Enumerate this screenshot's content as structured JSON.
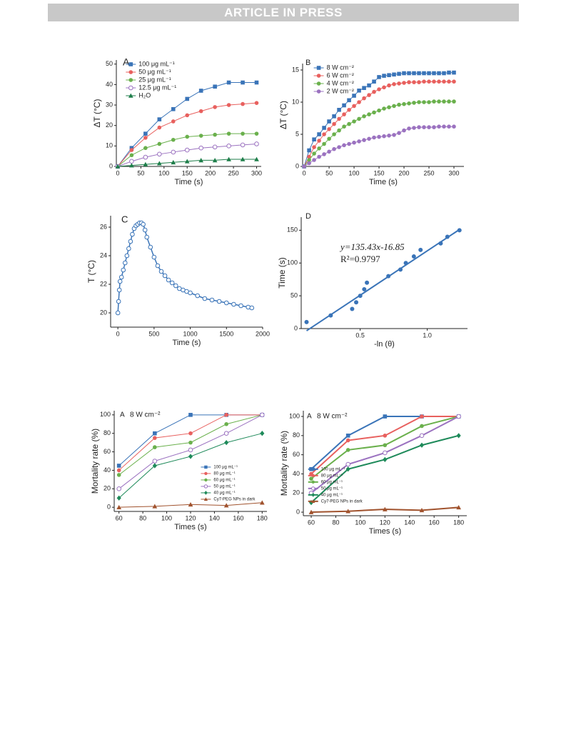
{
  "header": {
    "banner": "ARTICLE IN PRESS"
  },
  "chart_data": [
    {
      "type": "line",
      "panel_label": "A",
      "xlabel": "Time (s)",
      "ylabel": "ΔT (°C)",
      "x": [
        0,
        30,
        60,
        90,
        120,
        150,
        180,
        210,
        240,
        270,
        300
      ],
      "xlim": [
        -3,
        310
      ],
      "xticks": [
        0,
        50,
        100,
        150,
        200,
        250,
        300
      ],
      "ylim": [
        0,
        52
      ],
      "yticks": [
        0,
        10,
        20,
        30,
        40,
        50
      ],
      "legend": "upper left",
      "line_width": 1,
      "series": [
        {
          "name": "100 μg mL⁻¹",
          "color": "#3a74b8",
          "marker": "square",
          "values": [
            0,
            9,
            16,
            23,
            28,
            33,
            37,
            39,
            41,
            41,
            41
          ]
        },
        {
          "name": "50   μg mL⁻¹",
          "color": "#e8605e",
          "marker": "circle",
          "values": [
            0,
            8,
            14,
            19,
            22,
            25,
            27,
            29,
            30,
            30.5,
            31
          ]
        },
        {
          "name": "25   μg mL⁻¹",
          "color": "#6ab04c",
          "marker": "circle",
          "values": [
            0,
            5.5,
            9,
            11,
            13,
            14.5,
            15,
            15.5,
            16,
            16,
            16
          ]
        },
        {
          "name": "12.5 μg mL⁻¹",
          "color": "#9b72c0",
          "marker": "open-circle",
          "values": [
            0,
            2.5,
            4.5,
            6,
            7,
            8,
            9,
            9.5,
            10,
            10.5,
            11
          ]
        },
        {
          "name": "H₂O",
          "color": "#1e7e4a",
          "marker": "triangle",
          "values": [
            0,
            0.5,
            1,
            1.5,
            2,
            2.5,
            3,
            3,
            3.5,
            3.5,
            3.5
          ]
        }
      ]
    },
    {
      "type": "line",
      "panel_label": "B",
      "xlabel": "Time (s)",
      "ylabel": "ΔT (°C)",
      "x": [
        0,
        10,
        20,
        30,
        40,
        50,
        60,
        70,
        80,
        90,
        100,
        110,
        120,
        130,
        140,
        150,
        160,
        170,
        180,
        190,
        200,
        210,
        220,
        230,
        240,
        250,
        260,
        270,
        280,
        290,
        300
      ],
      "xlim": [
        -3,
        320
      ],
      "xticks": [
        0,
        50,
        100,
        150,
        200,
        250,
        300
      ],
      "ylim": [
        0,
        16
      ],
      "yticks": [
        0,
        5,
        10,
        15
      ],
      "legend": "upper left",
      "line_width": 1,
      "series": [
        {
          "name": "8 W cm⁻²",
          "color": "#3a74b8",
          "marker": "square",
          "values": [
            0,
            2.5,
            4.2,
            5,
            6,
            7,
            7.8,
            8.8,
            9.5,
            10.3,
            11,
            11.8,
            12.2,
            12.6,
            13.2,
            13.9,
            14.1,
            14.2,
            14.3,
            14.4,
            14.5,
            14.5,
            14.5,
            14.5,
            14.5,
            14.5,
            14.5,
            14.5,
            14.5,
            14.6,
            14.6
          ]
        },
        {
          "name": "6 W cm⁻²",
          "color": "#e8605e",
          "marker": "circle",
          "values": [
            0,
            1.5,
            3,
            4,
            5,
            5.8,
            6.6,
            7.4,
            8.1,
            8.8,
            9.4,
            10,
            10.6,
            11.1,
            11.6,
            12,
            12.3,
            12.6,
            12.8,
            12.9,
            13,
            13.1,
            13.1,
            13.1,
            13.2,
            13.2,
            13.2,
            13.2,
            13.2,
            13.2,
            13.2
          ]
        },
        {
          "name": "4 W cm⁻²",
          "color": "#6ab04c",
          "marker": "circle",
          "values": [
            0,
            1,
            2,
            2.8,
            3.5,
            4.3,
            5,
            5.6,
            6.2,
            6.6,
            7,
            7.4,
            7.8,
            8.1,
            8.4,
            8.7,
            9,
            9.2,
            9.4,
            9.6,
            9.7,
            9.8,
            9.9,
            10,
            10,
            10,
            10.1,
            10.1,
            10.1,
            10.1,
            10.1
          ]
        },
        {
          "name": "2 W cm⁻²",
          "color": "#9b72c0",
          "marker": "circle",
          "values": [
            0,
            0.5,
            1,
            1.5,
            1.9,
            2.3,
            2.7,
            3,
            3.3,
            3.5,
            3.7,
            3.9,
            4.1,
            4.3,
            4.5,
            4.6,
            4.7,
            4.8,
            4.9,
            5.2,
            5.6,
            5.9,
            6,
            6.1,
            6.1,
            6.1,
            6.1,
            6.2,
            6.2,
            6.2,
            6.2
          ]
        }
      ]
    },
    {
      "type": "line",
      "panel_label": "C",
      "xlabel": "Time (s)",
      "ylabel": "T (°C)",
      "x": [
        0,
        10,
        20,
        30,
        50,
        75,
        100,
        125,
        150,
        175,
        200,
        225,
        250,
        275,
        300,
        325,
        350,
        375,
        400,
        450,
        500,
        550,
        600,
        650,
        700,
        750,
        800,
        850,
        900,
        950,
        1000,
        1100,
        1200,
        1300,
        1400,
        1500,
        1600,
        1700,
        1800,
        1850
      ],
      "xlim": [
        -100,
        2000
      ],
      "xticks": [
        0,
        500,
        1000,
        1500,
        2000
      ],
      "ylim": [
        19,
        26.8
      ],
      "yticks": [
        20,
        22,
        24,
        26
      ],
      "line_width": 1.5,
      "series": [
        {
          "color": "#3a74b8",
          "marker": "open-circle",
          "values": [
            20,
            20.8,
            21.6,
            22.2,
            22.5,
            23,
            23.5,
            24,
            24.5,
            25,
            25.5,
            25.9,
            26.1,
            26.2,
            26.3,
            26.3,
            26.2,
            25.8,
            25.3,
            24.6,
            23.9,
            23.3,
            22.9,
            22.6,
            22.3,
            22.1,
            21.9,
            21.7,
            21.6,
            21.5,
            21.4,
            21.2,
            21,
            20.9,
            20.8,
            20.7,
            20.6,
            20.5,
            20.4,
            20.35
          ]
        }
      ]
    },
    {
      "type": "scatter",
      "panel_label": "D",
      "xlabel": "-ln (θ)",
      "ylabel": "Time (s)",
      "color": "#3a74b8",
      "x": [
        0.1,
        0.28,
        0.44,
        0.47,
        0.5,
        0.53,
        0.55,
        0.71,
        0.8,
        0.84,
        0.9,
        0.95,
        1.1,
        1.15,
        1.24
      ],
      "values": [
        10,
        20,
        30,
        40,
        50,
        60,
        70,
        80,
        90,
        100,
        110,
        120,
        130,
        140,
        150
      ],
      "xlim": [
        0.06,
        1.3
      ],
      "xticks": [
        0.5,
        {
          "value": 1,
          "label": "1.0"
        }
      ],
      "ylim": [
        0,
        170
      ],
      "yticks": [
        0,
        50,
        100,
        150
      ],
      "fit": {
        "slope": 135.43,
        "intercept": -16.85
      },
      "annotations": [
        "y=135.43x-16.85",
        "R²=0.9797"
      ]
    },
    {
      "type": "line",
      "panel_label": "A",
      "subtitle": "8 W cm⁻²",
      "xlabel": "Times (s)",
      "ylabel": "Mortality rate (%)",
      "x": [
        60,
        90,
        120,
        150,
        180
      ],
      "xlim": [
        56,
        184
      ],
      "xticks": [
        60,
        80,
        100,
        120,
        140,
        160,
        180
      ],
      "ylim": [
        -4.5,
        104.5
      ],
      "yticks": [
        0,
        20,
        40,
        60,
        80,
        100
      ],
      "legend": "lower right",
      "line_width": 1,
      "series": [
        {
          "name": "100 μg mL⁻¹",
          "color": "#3a74b8",
          "marker": "square",
          "values": [
            45,
            80,
            100,
            100,
            100
          ]
        },
        {
          "name": "80 μg mL⁻¹",
          "color": "#e8605e",
          "marker": "circle",
          "values": [
            40,
            75,
            80,
            100,
            100
          ]
        },
        {
          "name": "60 μg mL⁻¹",
          "color": "#6ab04c",
          "marker": "circle",
          "values": [
            35,
            65,
            70,
            90,
            100
          ]
        },
        {
          "name": "50 μg mL⁻¹",
          "color": "#9b72c0",
          "marker": "open-circle",
          "values": [
            20,
            50,
            62,
            80,
            100
          ]
        },
        {
          "name": "40 μg mL⁻¹",
          "color": "#1e8a5a",
          "marker": "diamond",
          "values": [
            10,
            45,
            55,
            70,
            80
          ]
        },
        {
          "name": "Cy7-PEG NPs in dark",
          "color": "#a0522d",
          "marker": "triangle",
          "values": [
            0,
            1,
            3,
            2,
            5
          ]
        }
      ]
    },
    {
      "type": "line",
      "panel_label": "A",
      "subtitle": "8 W cm⁻²",
      "xlabel": "Times (s)",
      "ylabel": "Mortality rate (%)",
      "x": [
        60,
        90,
        120,
        150,
        180
      ],
      "xlim": [
        53.6,
        186.6
      ],
      "xticks": [
        60,
        80,
        100,
        120,
        140,
        160,
        180
      ],
      "ylim": [
        -3.7,
        106
      ],
      "yticks": [
        0,
        20,
        40,
        60,
        80,
        100
      ],
      "legend": "lower left",
      "line_width": 2,
      "series": [
        {
          "name": "100 μg mL⁻¹",
          "color": "#3a74b8",
          "marker": "square",
          "values": [
            45,
            80,
            100,
            100,
            100
          ]
        },
        {
          "name": "80 μg mL⁻¹",
          "color": "#e8605e",
          "marker": "circle",
          "values": [
            40,
            75,
            80,
            100,
            100
          ]
        },
        {
          "name": "60 μg mL⁻¹",
          "color": "#6ab04c",
          "marker": "circle",
          "values": [
            35,
            65,
            70,
            90,
            100
          ]
        },
        {
          "name": "50 μg mL⁻¹",
          "color": "#9b72c0",
          "marker": "open-circle",
          "values": [
            20,
            50,
            62,
            80,
            100
          ]
        },
        {
          "name": "40 μg mL⁻¹",
          "color": "#1e8a5a",
          "marker": "diamond",
          "values": [
            10,
            45,
            55,
            70,
            80
          ]
        },
        {
          "name": "Cy7-PEG NPs in dark",
          "color": "#a0522d",
          "marker": "triangle",
          "values": [
            0,
            1,
            3,
            2,
            5
          ]
        }
      ]
    }
  ]
}
